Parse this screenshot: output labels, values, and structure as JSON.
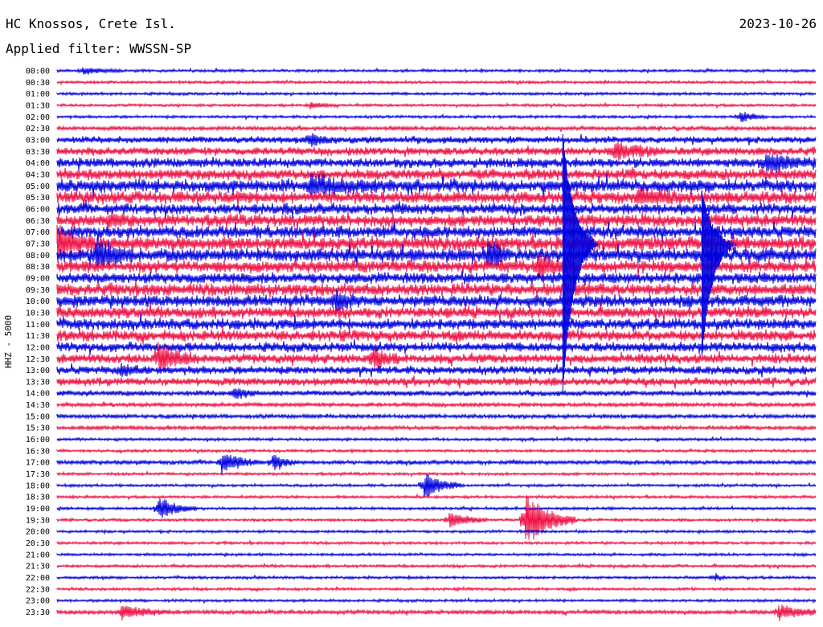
{
  "header": {
    "station": "HC Knossos, Crete Isl.",
    "filter": "Applied filter: WWSSN-SP",
    "date": "2023-10-26"
  },
  "chart_data": {
    "type": "helicorder",
    "ylabel": "HHZ - 5000",
    "rows": [
      "00:00",
      "00:30",
      "01:00",
      "01:30",
      "02:00",
      "02:30",
      "03:00",
      "03:30",
      "04:00",
      "04:30",
      "05:00",
      "05:30",
      "06:00",
      "06:30",
      "07:00",
      "07:30",
      "08:00",
      "08:30",
      "09:00",
      "09:30",
      "10:00",
      "10:30",
      "11:00",
      "11:30",
      "12:00",
      "12:30",
      "13:00",
      "13:30",
      "14:00",
      "14:30",
      "15:00",
      "15:30",
      "16:00",
      "16:30",
      "17:00",
      "17:30",
      "18:00",
      "18:30",
      "19:00",
      "19:30",
      "20:00",
      "20:30",
      "21:00",
      "21:30",
      "22:00",
      "22:30",
      "23:00",
      "23:30"
    ],
    "series_colors": [
      "#0000dd",
      "#ee1144"
    ],
    "noise_level": [
      2,
      2,
      2,
      2,
      2,
      3,
      5,
      6,
      7,
      8,
      9,
      9,
      8,
      9,
      9,
      10,
      10,
      9,
      8,
      9,
      9,
      8,
      8,
      8,
      7,
      7,
      6,
      6,
      4,
      3,
      3,
      3,
      2,
      2,
      3,
      2,
      2,
      2,
      2,
      2,
      2,
      2,
      2,
      2,
      2,
      2,
      2,
      3
    ],
    "events": [
      {
        "row": 0,
        "minute": 1,
        "amp": 4,
        "dur": 1.5
      },
      {
        "row": 3,
        "minute": 10,
        "amp": 4,
        "dur": 1
      },
      {
        "row": 4,
        "minute": 27,
        "amp": 7,
        "dur": 1
      },
      {
        "row": 6,
        "minute": 10,
        "amp": 8,
        "dur": 1
      },
      {
        "row": 7,
        "minute": 22,
        "amp": 10,
        "dur": 2
      },
      {
        "row": 8,
        "minute": 28,
        "amp": 10,
        "dur": 2
      },
      {
        "row": 10,
        "minute": 10,
        "amp": 10,
        "dur": 3
      },
      {
        "row": 11,
        "minute": 23,
        "amp": 8,
        "dur": 2
      },
      {
        "row": 13,
        "minute": 2,
        "amp": 8,
        "dur": 1
      },
      {
        "row": 15,
        "minute": 0,
        "amp": 20,
        "dur": 1.5
      },
      {
        "row": 16,
        "minute": 1.5,
        "amp": 20,
        "dur": 1.5
      },
      {
        "row": 16,
        "minute": 17,
        "amp": 14,
        "dur": 1
      },
      {
        "row": 17,
        "minute": 19,
        "amp": 12,
        "dur": 1.5
      },
      {
        "row": 20,
        "minute": 11,
        "amp": 12,
        "dur": 1
      },
      {
        "row": 25,
        "minute": 4,
        "amp": 18,
        "dur": 1.5
      },
      {
        "row": 25,
        "minute": 12.5,
        "amp": 12,
        "dur": 1
      },
      {
        "row": 26,
        "minute": 2.5,
        "amp": 8,
        "dur": 1
      },
      {
        "row": 28,
        "minute": 7,
        "amp": 8,
        "dur": 1
      },
      {
        "row": 34,
        "minute": 6.5,
        "amp": 14,
        "dur": 1.5
      },
      {
        "row": 34,
        "minute": 8.5,
        "amp": 10,
        "dur": 1
      },
      {
        "row": 36,
        "minute": 14.5,
        "amp": 16,
        "dur": 1.5
      },
      {
        "row": 38,
        "minute": 4,
        "amp": 14,
        "dur": 1.5
      },
      {
        "row": 39,
        "minute": 15.5,
        "amp": 10,
        "dur": 1.5
      },
      {
        "row": 39,
        "minute": 18.5,
        "amp": 34,
        "dur": 2
      },
      {
        "row": 44,
        "minute": 26,
        "amp": 5,
        "dur": 0.5
      },
      {
        "row": 47,
        "minute": 2.5,
        "amp": 8,
        "dur": 2
      },
      {
        "row": 47,
        "minute": 28.5,
        "amp": 8,
        "dur": 2
      }
    ],
    "big_events": [
      {
        "start_row": 6,
        "end_row": 28,
        "minute": 20,
        "peak_row": 15,
        "label": "event-1"
      },
      {
        "start_row": 11,
        "end_row": 25,
        "minute": 25.5,
        "peak_row": 15,
        "label": "event-2"
      }
    ]
  }
}
